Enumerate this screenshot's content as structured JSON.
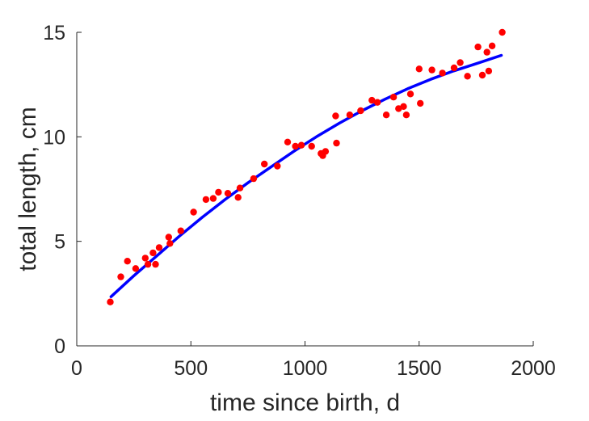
{
  "chart_data": {
    "type": "scatter",
    "title": "",
    "xlabel": "time since birth, d",
    "ylabel": "total length, cm",
    "xlim": [
      0,
      2000
    ],
    "ylim": [
      0,
      15
    ],
    "xticks": [
      0,
      500,
      1000,
      1500,
      2000
    ],
    "yticks": [
      0,
      5,
      10,
      15
    ],
    "grid": false,
    "series": [
      {
        "kind": "scatter",
        "color": "#ff0000",
        "x": [
          147,
          193,
          222,
          258,
          300,
          312,
          334,
          345,
          361,
          403,
          408,
          456,
          512,
          566,
          598,
          621,
          662,
          707,
          715,
          775,
          822,
          879,
          924,
          958,
          984,
          1029,
          1070,
          1078,
          1090,
          1134,
          1138,
          1196,
          1244,
          1293,
          1317,
          1356,
          1388,
          1410,
          1432,
          1444,
          1462,
          1500,
          1505,
          1556,
          1602,
          1653,
          1680,
          1712,
          1758,
          1777,
          1797,
          1805,
          1820,
          1864
        ],
        "y": [
          2.1,
          3.3,
          4.05,
          3.7,
          4.2,
          3.9,
          4.45,
          3.9,
          4.7,
          5.2,
          4.9,
          5.5,
          6.4,
          7.0,
          7.05,
          7.35,
          7.3,
          7.1,
          7.55,
          8.0,
          8.7,
          8.6,
          9.75,
          9.55,
          9.6,
          9.55,
          9.2,
          9.1,
          9.3,
          11.0,
          9.7,
          11.05,
          11.25,
          11.75,
          11.65,
          11.05,
          11.9,
          11.35,
          11.45,
          11.05,
          12.05,
          13.25,
          11.6,
          13.2,
          13.05,
          13.3,
          13.55,
          12.9,
          14.3,
          12.95,
          14.05,
          13.15,
          14.35,
          15.0
        ]
      },
      {
        "kind": "line",
        "color": "#0000ff",
        "x": [
          150,
          250,
          350,
          450,
          550,
          650,
          750,
          850,
          950,
          1050,
          1150,
          1250,
          1350,
          1450,
          1550,
          1650,
          1750,
          1860
        ],
        "y": [
          2.35,
          3.35,
          4.3,
          5.25,
          6.15,
          7.0,
          7.8,
          8.55,
          9.3,
          10.0,
          10.65,
          11.25,
          11.8,
          12.3,
          12.75,
          13.15,
          13.5,
          13.9
        ]
      }
    ]
  }
}
